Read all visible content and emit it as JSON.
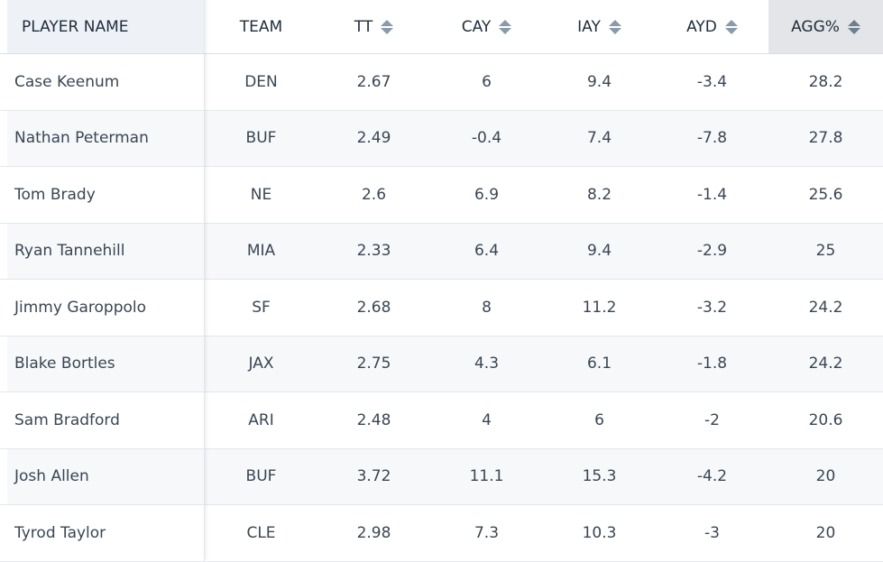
{
  "headers": {
    "player": "PLAYER NAME",
    "team": "TEAM",
    "tt": "TT",
    "cay": "CAY",
    "iay": "IAY",
    "ayd": "AYD",
    "agg": "AGG%"
  },
  "sorted_column": "agg",
  "rows": [
    {
      "player": "Case Keenum",
      "team": "DEN",
      "tt": "2.67",
      "cay": "6",
      "iay": "9.4",
      "ayd": "-3.4",
      "agg": "28.2"
    },
    {
      "player": "Nathan Peterman",
      "team": "BUF",
      "tt": "2.49",
      "cay": "-0.4",
      "iay": "7.4",
      "ayd": "-7.8",
      "agg": "27.8"
    },
    {
      "player": "Tom Brady",
      "team": "NE",
      "tt": "2.6",
      "cay": "6.9",
      "iay": "8.2",
      "ayd": "-1.4",
      "agg": "25.6"
    },
    {
      "player": "Ryan Tannehill",
      "team": "MIA",
      "tt": "2.33",
      "cay": "6.4",
      "iay": "9.4",
      "ayd": "-2.9",
      "agg": "25"
    },
    {
      "player": "Jimmy Garoppolo",
      "team": "SF",
      "tt": "2.68",
      "cay": "8",
      "iay": "11.2",
      "ayd": "-3.2",
      "agg": "24.2"
    },
    {
      "player": "Blake Bortles",
      "team": "JAX",
      "tt": "2.75",
      "cay": "4.3",
      "iay": "6.1",
      "ayd": "-1.8",
      "agg": "24.2"
    },
    {
      "player": "Sam Bradford",
      "team": "ARI",
      "tt": "2.48",
      "cay": "4",
      "iay": "6",
      "ayd": "-2",
      "agg": "20.6"
    },
    {
      "player": "Josh Allen",
      "team": "BUF",
      "tt": "3.72",
      "cay": "11.1",
      "iay": "15.3",
      "ayd": "-4.2",
      "agg": "20"
    },
    {
      "player": "Tyrod Taylor",
      "team": "CLE",
      "tt": "2.98",
      "cay": "7.3",
      "iay": "10.3",
      "ayd": "-3",
      "agg": "20"
    }
  ]
}
